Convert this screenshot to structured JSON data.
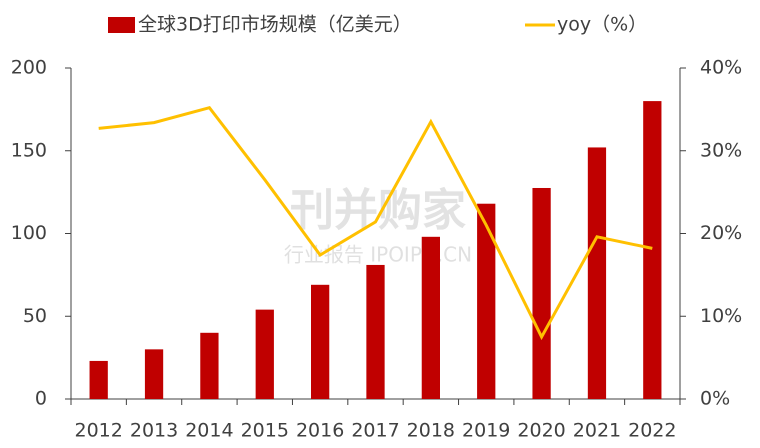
{
  "chart_data": {
    "type": "bar_line",
    "categories": [
      "2012",
      "2013",
      "2014",
      "2015",
      "2016",
      "2017",
      "2018",
      "2019",
      "2020",
      "2021",
      "2022"
    ],
    "series": [
      {
        "name": "全球3D打印市场规模（亿美元）",
        "type": "bar",
        "color": "#c00000",
        "values": [
          23,
          30,
          40,
          54,
          69,
          81,
          98,
          118,
          127.5,
          152,
          180
        ]
      },
      {
        "name": "yoy（%）",
        "type": "line",
        "axis": "y2",
        "color": "#ffc000",
        "values": [
          32.7,
          33.4,
          35.2,
          26.5,
          17.4,
          21.4,
          33.5,
          21,
          7.5,
          19.6,
          18.2
        ]
      }
    ],
    "ylim": [
      0,
      200
    ],
    "yticks": [
      0,
      50,
      100,
      150,
      200
    ],
    "y2lim": [
      0,
      40
    ],
    "y2ticks": [
      {
        "value": 0,
        "label": "0%"
      },
      {
        "value": 10,
        "label": "10%"
      },
      {
        "value": 20,
        "label": "20%"
      },
      {
        "value": 30,
        "label": "30%"
      },
      {
        "value": 40,
        "label": "40%"
      }
    ],
    "legend": "top",
    "watermark": [
      "刊并购家",
      "行业报告 IPOIPO.CN"
    ]
  }
}
